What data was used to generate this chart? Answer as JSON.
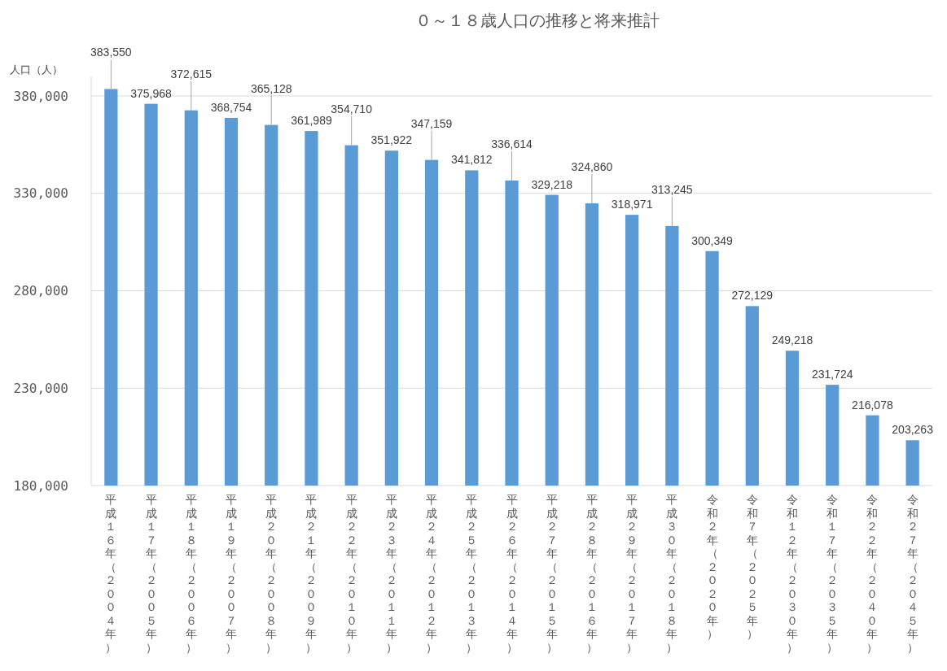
{
  "chart_data": {
    "type": "bar",
    "title": "０～１８歳人口の推移と将来推計",
    "ylabel": "人口（人）",
    "categories": [
      "平成１６年（２００４年）",
      "平成１７年（２００５年）",
      "平成１８年（２００６年）",
      "平成１９年（２００７年）",
      "平成２０年（２００８年）",
      "平成２１年（２００９年）",
      "平成２２年（２０１０年）",
      "平成２３年（２０１１年）",
      "平成２４年（２０１２年）",
      "平成２５年（２０１３年）",
      "平成２６年（２０１４年）",
      "平成２７年（２０１５年）",
      "平成２８年（２０１６年）",
      "平成２９年（２０１７年）",
      "平成３０年（２０１８年）",
      "令和２年（２０２０年）",
      "令和７年（２０２５年）",
      "令和１２年（２０３０年）",
      "令和１７年（２０３５年）",
      "令和２２年（２０４０年）",
      "令和２７年（２０４５年）"
    ],
    "values": [
      383550,
      375968,
      372615,
      368754,
      365128,
      361989,
      354710,
      351922,
      347159,
      341812,
      336614,
      329218,
      324860,
      318971,
      313245,
      300349,
      272129,
      249218,
      231724,
      216078,
      203263
    ],
    "color": "#5b9bd5",
    "ylim": [
      180000,
      390000
    ],
    "yticks": [
      {
        "value": 180000,
        "label": "180,000"
      },
      {
        "value": 230000,
        "label": "230,000"
      },
      {
        "value": 280000,
        "label": "280,000"
      },
      {
        "value": 330000,
        "label": "330,000"
      },
      {
        "value": 380000,
        "label": "380,000"
      }
    ],
    "grid": "y",
    "value_labels": [
      "383,550",
      "375,968",
      "372,615",
      "368,754",
      "365,128",
      "361,989",
      "354,710",
      "351,922",
      "347,159",
      "341,812",
      "336,614",
      "329,218",
      "324,860",
      "318,971",
      "313,245",
      "300,349",
      "272,129",
      "249,218",
      "231,724",
      "216,078",
      "203,263"
    ]
  }
}
